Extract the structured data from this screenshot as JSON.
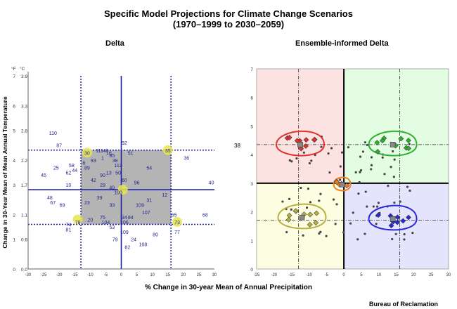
{
  "title_line1": "Specific Model Projections for Climate Change Scenarios",
  "title_line2": "(1970–1999 to 2030–2059)",
  "credit": "Bureau of Reclamation",
  "xlabel": "% Change in 30-year Mean of Annual Precipitation",
  "colors": {
    "grid_box": "#b4b4b4",
    "axis_line": "#1f1fa0",
    "dots": "#1f1f8c",
    "highlight": "#e6e650",
    "q_warm_dry": "#fde2e2",
    "q_warm_wet": "#e2fde2",
    "q_cool_dry": "#fdfde2",
    "q_cool_wet": "#e4e4fd",
    "red": "#e03030",
    "green": "#30b030",
    "yellow": "#b8b040",
    "blue": "#2828d8",
    "orange": "#f08020"
  },
  "chart_data": [
    {
      "type": "scatter",
      "title": "Delta",
      "ylabel": "Change in 30-Year Mean of Mean Annual Temperature",
      "y_unit_labels": [
        "°F",
        "°C"
      ],
      "xlim": [
        -30,
        30
      ],
      "x_ticks": [
        "-30",
        "-25",
        "-20",
        "-15",
        "-10",
        "-5",
        "0",
        "5",
        "10",
        "15",
        "20",
        "25",
        "30"
      ],
      "ylim_c": [
        0,
        3.9
      ],
      "y_ticks": [
        {
          "f": "7",
          "c": "3.9"
        },
        {
          "f": "6",
          "c": "3.3"
        },
        {
          "f": "5",
          "c": "2.8"
        },
        {
          "f": "4",
          "c": "2.2"
        },
        {
          "f": "3",
          "c": "1.7"
        },
        {
          "f": "2",
          "c": "1.1"
        },
        {
          "f": "1",
          "c": "0.6"
        },
        {
          "f": "0",
          "c": "0.0"
        }
      ],
      "vlines_dotted": [
        -13,
        16
      ],
      "hlines_dotted": [
        2.4,
        0.9
      ],
      "center": {
        "x": 0,
        "y": 1.6
      },
      "box": {
        "x": [
          -13,
          16
        ],
        "y": [
          0.9,
          2.4
        ]
      },
      "highlights": [
        {
          "x": -11,
          "y": 2.35
        },
        {
          "x": 15,
          "y": 2.4
        },
        {
          "x": 0.5,
          "y": 1.6
        },
        {
          "x": -14,
          "y": 1.0
        },
        {
          "x": 18,
          "y": 0.95
        }
      ],
      "labels": [
        {
          "t": "110",
          "x": -22,
          "y": 2.75
        },
        {
          "t": "87",
          "x": -20,
          "y": 2.5
        },
        {
          "t": "25",
          "x": -21,
          "y": 2.05
        },
        {
          "t": "45",
          "x": -25,
          "y": 1.9
        },
        {
          "t": "58",
          "x": -16,
          "y": 2.1
        },
        {
          "t": "62",
          "x": -17,
          "y": 1.95
        },
        {
          "t": "44",
          "x": -15,
          "y": 2.0
        },
        {
          "t": "10",
          "x": -17,
          "y": 1.7
        },
        {
          "t": "48",
          "x": -23,
          "y": 1.45
        },
        {
          "t": "67",
          "x": -22,
          "y": 1.35
        },
        {
          "t": "69",
          "x": -19,
          "y": 1.3
        },
        {
          "t": "74",
          "x": -17,
          "y": 0.9
        },
        {
          "t": "81",
          "x": -17,
          "y": 0.8
        },
        {
          "t": "78",
          "x": -14,
          "y": 0.95
        },
        {
          "t": "30",
          "x": -11,
          "y": 2.35
        },
        {
          "t": "111",
          "x": -7,
          "y": 2.4
        },
        {
          "t": "46",
          "x": -5,
          "y": 2.4
        },
        {
          "t": "16",
          "x": -4,
          "y": 2.35
        },
        {
          "t": "85",
          "x": -3,
          "y": 2.3
        },
        {
          "t": "1",
          "x": -6,
          "y": 2.25
        },
        {
          "t": "6",
          "x": -12,
          "y": 2.15
        },
        {
          "t": "93",
          "x": -9,
          "y": 2.2
        },
        {
          "t": "89",
          "x": -11,
          "y": 2.05
        },
        {
          "t": "13",
          "x": -4,
          "y": 1.95
        },
        {
          "t": "90",
          "x": -6,
          "y": 1.9
        },
        {
          "t": "50",
          "x": -1,
          "y": 1.95
        },
        {
          "t": "42",
          "x": -9,
          "y": 1.8
        },
        {
          "t": "51",
          "x": 3,
          "y": 2.35
        },
        {
          "t": "92",
          "x": 1,
          "y": 2.55
        },
        {
          "t": "38",
          "x": -2,
          "y": 2.2
        },
        {
          "t": "112",
          "x": -1,
          "y": 2.1
        },
        {
          "t": "54",
          "x": 9,
          "y": 2.05
        },
        {
          "t": "100",
          "x": -1,
          "y": 1.55
        },
        {
          "t": "49",
          "x": -3,
          "y": 1.65
        },
        {
          "t": "29",
          "x": -6,
          "y": 1.7
        },
        {
          "t": "60",
          "x": 1,
          "y": 1.8
        },
        {
          "t": "96",
          "x": 5,
          "y": 1.75
        },
        {
          "t": "39",
          "x": -7,
          "y": 1.45
        },
        {
          "t": "23",
          "x": -11,
          "y": 1.35
        },
        {
          "t": "33",
          "x": -3,
          "y": 1.3
        },
        {
          "t": "35",
          "x": 15,
          "y": 2.4
        },
        {
          "t": "36",
          "x": 21,
          "y": 2.25
        },
        {
          "t": "40",
          "x": 29,
          "y": 1.75
        },
        {
          "t": "68",
          "x": 27,
          "y": 1.1
        },
        {
          "t": "12",
          "x": 14,
          "y": 1.5
        },
        {
          "t": "31",
          "x": 9,
          "y": 1.4
        },
        {
          "t": "109",
          "x": 6,
          "y": 1.3
        },
        {
          "t": "107",
          "x": 8,
          "y": 1.15
        },
        {
          "t": "20",
          "x": -10,
          "y": 1.0
        },
        {
          "t": "75",
          "x": -6,
          "y": 1.05
        },
        {
          "t": "104",
          "x": -5,
          "y": 0.95
        },
        {
          "t": "106",
          "x": 1,
          "y": 0.95
        },
        {
          "t": "84",
          "x": 3,
          "y": 1.05
        },
        {
          "t": "34",
          "x": 1,
          "y": 1.05
        },
        {
          "t": "53",
          "x": -3,
          "y": 0.85
        },
        {
          "t": "109",
          "x": 1,
          "y": 0.75
        },
        {
          "t": "79",
          "x": -2,
          "y": 0.6
        },
        {
          "t": "24",
          "x": 4,
          "y": 0.6
        },
        {
          "t": "80",
          "x": 11,
          "y": 0.7
        },
        {
          "t": "82",
          "x": 2,
          "y": 0.45
        },
        {
          "t": "108",
          "x": 7,
          "y": 0.5
        },
        {
          "t": "77",
          "x": 18,
          "y": 0.75
        },
        {
          "t": "65",
          "x": 17,
          "y": 1.1
        },
        {
          "t": "73",
          "x": 18,
          "y": 0.95
        }
      ]
    },
    {
      "type": "scatter",
      "title": "Ensemble-informed Delta",
      "xlim": [
        -25,
        30
      ],
      "x_ticks": [
        "-25",
        "-20",
        "-15",
        "-10",
        "-5",
        "0",
        "5",
        "10",
        "15",
        "20",
        "25",
        "30"
      ],
      "ylim": [
        0,
        7
      ],
      "y_ticks": [
        "7",
        "6",
        "5",
        "4",
        "3",
        "2",
        "1",
        "0"
      ],
      "side_label": "38",
      "center": {
        "x": 0,
        "y": 3.0
      },
      "dashed_v": [
        -13,
        16
      ],
      "dashed_h": [
        4.35,
        1.7
      ],
      "clusters": [
        {
          "name": "warm-dry",
          "color": "red",
          "cx": -12.5,
          "cy": 4.35
        },
        {
          "name": "warm-wet",
          "color": "green",
          "cx": 14,
          "cy": 4.35
        },
        {
          "name": "cool-dry",
          "color": "yellow",
          "cx": -12,
          "cy": 1.8
        },
        {
          "name": "cool-wet",
          "color": "blue",
          "cx": 14,
          "cy": 1.75
        },
        {
          "name": "central",
          "color": "orange",
          "cx": -0.5,
          "cy": 2.95
        }
      ]
    }
  ]
}
